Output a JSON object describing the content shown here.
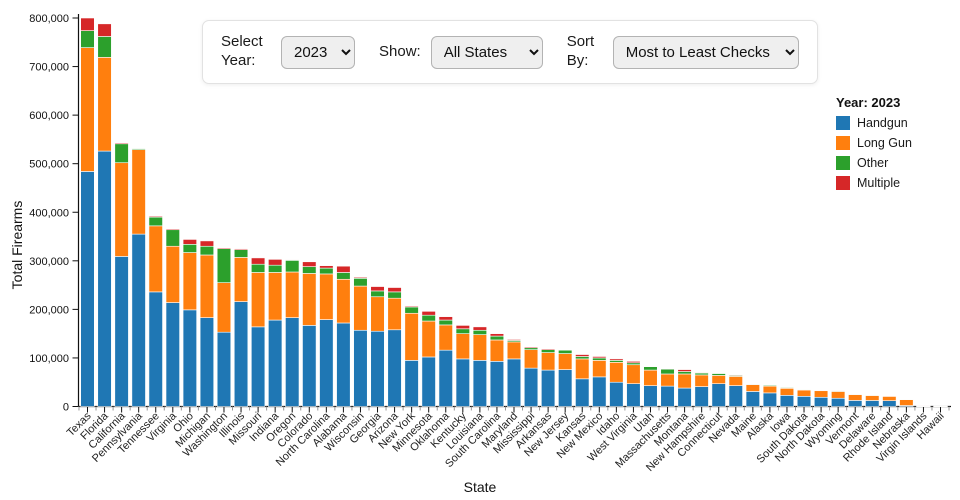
{
  "controls": {
    "select_year_label": "Select Year:",
    "year_value": "2023",
    "show_label": "Show:",
    "show_value": "All States",
    "sort_label": "Sort By:",
    "sort_value": "Most to Least Checks"
  },
  "legend": {
    "title": "Year: 2023"
  },
  "chart_data": {
    "type": "bar",
    "stacked": true,
    "xlabel": "State",
    "ylabel": "Total Firearms",
    "ylim": [
      0,
      800000
    ],
    "ytick_interval": 100000,
    "grid": false,
    "legend_position": "right",
    "categories": [
      "Texas",
      "Florida",
      "California",
      "Pennsylvania",
      "Tennessee",
      "Virginia",
      "Ohio",
      "Michigan",
      "Washington",
      "Illinois",
      "Missouri",
      "Indiana",
      "Oregon",
      "Colorado",
      "North Carolina",
      "Alabama",
      "Wisconsin",
      "Georgia",
      "Arizona",
      "New York",
      "Minnesota",
      "Oklahoma",
      "Kentucky",
      "Louisiana",
      "South Carolina",
      "Maryland",
      "Mississippi",
      "Arkansas",
      "New Jersey",
      "Kansas",
      "New Mexico",
      "Idaho",
      "West Virginia",
      "Utah",
      "Massachusetts",
      "Montana",
      "New Hampshire",
      "Connecticut",
      "Nevada",
      "Maine",
      "Alaska",
      "Iowa",
      "South Dakota",
      "North Dakota",
      "Wyoming",
      "Vermont",
      "Delaware",
      "Rhode Island",
      "Nebraska",
      "Virgin Islands",
      "Hawaii"
    ],
    "series": [
      {
        "name": "Handgun",
        "color": "#1f77b4",
        "values": [
          484000,
          526000,
          309000,
          355000,
          236000,
          214000,
          199000,
          183000,
          153000,
          216000,
          164000,
          178000,
          183000,
          167000,
          179000,
          172000,
          157000,
          155000,
          158000,
          95000,
          102000,
          116000,
          98000,
          95000,
          93000,
          98000,
          79000,
          75000,
          76000,
          57000,
          61000,
          50000,
          47000,
          43000,
          42000,
          38000,
          41000,
          47000,
          43000,
          31000,
          28000,
          23000,
          21000,
          19000,
          17000,
          12500,
          12400,
          12000,
          2000,
          500,
          300
        ]
      },
      {
        "name": "Long Gun",
        "color": "#ff7f0e",
        "values": [
          255000,
          193000,
          193000,
          174000,
          136000,
          116000,
          118000,
          129000,
          102000,
          91000,
          112000,
          98000,
          94000,
          107000,
          94000,
          90000,
          91000,
          71000,
          65000,
          97000,
          74000,
          52000,
          52000,
          53000,
          44000,
          35000,
          38000,
          36000,
          33000,
          41000,
          34000,
          41000,
          39000,
          32000,
          25000,
          29000,
          24000,
          17000,
          19000,
          14000,
          14000,
          14500,
          13000,
          13500,
          14000,
          12000,
          10300,
          9000,
          12300,
          500,
          400
        ]
      },
      {
        "name": "Other",
        "color": "#2ca02c",
        "values": [
          35000,
          43000,
          39000,
          2000,
          18000,
          34000,
          17000,
          18000,
          70000,
          16000,
          17000,
          15000,
          24000,
          14000,
          12000,
          14000,
          16000,
          12000,
          13000,
          13000,
          12000,
          10000,
          10000,
          9000,
          8000,
          3000,
          4000,
          6000,
          7000,
          5000,
          5000,
          4000,
          4000,
          7000,
          10000,
          5000,
          4000,
          4000,
          2000,
          1400,
          1800,
          1700,
          1300,
          1300,
          1400,
          1000,
          700,
          600,
          600,
          100,
          50
        ]
      },
      {
        "name": "Multiple",
        "color": "#d62728",
        "values": [
          26000,
          26000,
          2000,
          0,
          2000,
          2000,
          10000,
          11000,
          2000,
          2000,
          13000,
          12000,
          1000,
          10000,
          5000,
          13000,
          2000,
          9000,
          9000,
          2000,
          8000,
          7000,
          7000,
          7000,
          5000,
          2000,
          2000,
          2000,
          1000,
          4000,
          3000,
          3000,
          3000,
          1000,
          1000,
          4000,
          1300,
          1000,
          1500,
          600,
          1000,
          800,
          600,
          700,
          700,
          700,
          700,
          500,
          400,
          100,
          50
        ]
      }
    ]
  }
}
